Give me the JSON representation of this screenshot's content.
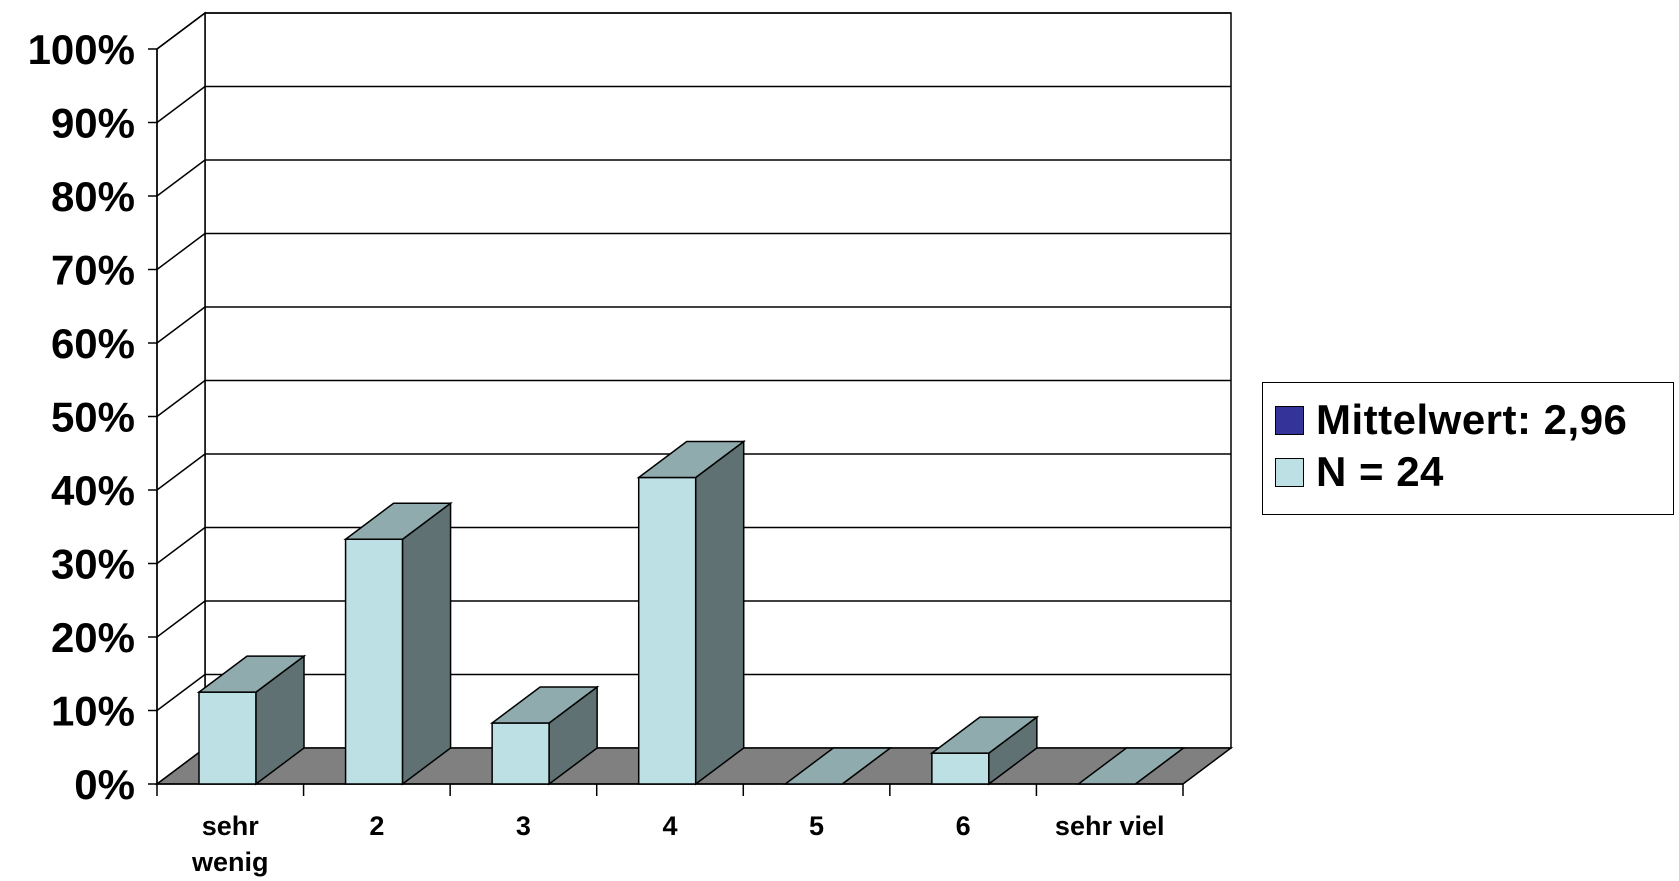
{
  "chart_data": {
    "type": "bar",
    "categories": [
      "sehr wenig",
      "2",
      "3",
      "4",
      "5",
      "6",
      "sehr viel"
    ],
    "series": [
      {
        "name": "N = 24",
        "values": [
          12.5,
          33.3,
          8.3,
          41.7,
          0,
          4.2,
          0
        ]
      }
    ],
    "yticks": [
      "0%",
      "10%",
      "20%",
      "30%",
      "40%",
      "50%",
      "60%",
      "70%",
      "80%",
      "90%",
      "100%"
    ],
    "ylim": [
      0,
      100
    ],
    "grid": true,
    "legend_position": "right",
    "legend": [
      {
        "label": "Mittelwert: 2,96",
        "color": "#333399"
      },
      {
        "label": "N = 24",
        "color": "#bde0e4"
      }
    ],
    "colors": {
      "bar_front": "#bde0e4",
      "bar_top": "#8fabad",
      "bar_side": "#5f7172",
      "floor": "#808080",
      "back_wall": "#ffffff",
      "side_wall": "#ffffff",
      "mean_marker": "#333399"
    }
  }
}
